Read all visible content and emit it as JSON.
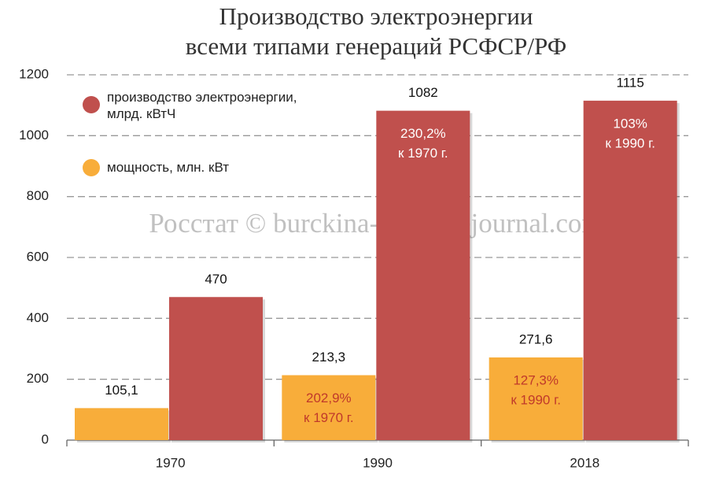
{
  "chart_data": {
    "type": "bar",
    "title": [
      "Производство электроэнергии",
      "всеми типами генераций РСФСР/РФ"
    ],
    "watermark": "Росстат © burckina-new.livejournal.com",
    "categories": [
      "1970",
      "1990",
      "2018"
    ],
    "series": [
      {
        "name": "мощность, млн. кВт",
        "color": "#f8ad3a",
        "values": [
          105.1,
          213.3,
          271.6
        ],
        "value_labels": [
          "105,1",
          "213,3",
          "271,6"
        ],
        "annotations": [
          null,
          [
            "202,9%",
            "к 1970 г."
          ],
          [
            "127,3%",
            "к 1990 г."
          ]
        ]
      },
      {
        "name": "производство электроэнергии, млрд. кВтЧ",
        "color": "#c0504d",
        "values": [
          470,
          1082,
          1115
        ],
        "annotations": [
          null,
          [
            "230,2%",
            "к 1970 г."
          ],
          [
            "103%",
            "к 1990 г."
          ]
        ]
      }
    ],
    "ylim": [
      0,
      1200
    ],
    "yticks": [
      0,
      200,
      400,
      600,
      800,
      1000,
      1200
    ],
    "grid": true
  }
}
